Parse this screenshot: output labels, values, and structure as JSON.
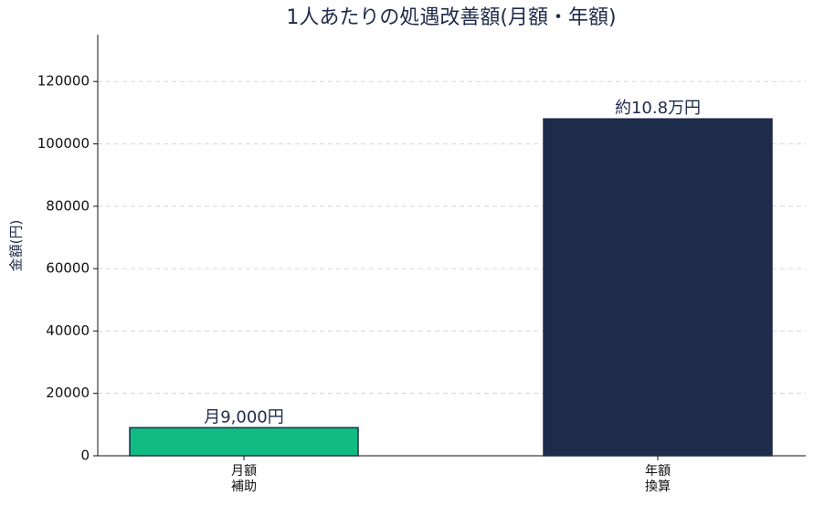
{
  "chart_data": {
    "type": "bar",
    "title": "1人あたりの処遇改善額(月額・年額)",
    "y_label": "金額(円)",
    "categories": [
      "月額\n補助",
      "年額\n換算"
    ],
    "values": [
      9000,
      108000
    ],
    "value_labels": [
      "月9,000円",
      "約10.8万円"
    ],
    "colors": [
      "#10bc82",
      "#1e2b4a"
    ],
    "edge_color": "#1e2b4a",
    "ylim": [
      0,
      135000
    ],
    "yticks": [
      0,
      20000,
      40000,
      60000,
      80000,
      100000,
      120000
    ],
    "grid": true
  }
}
